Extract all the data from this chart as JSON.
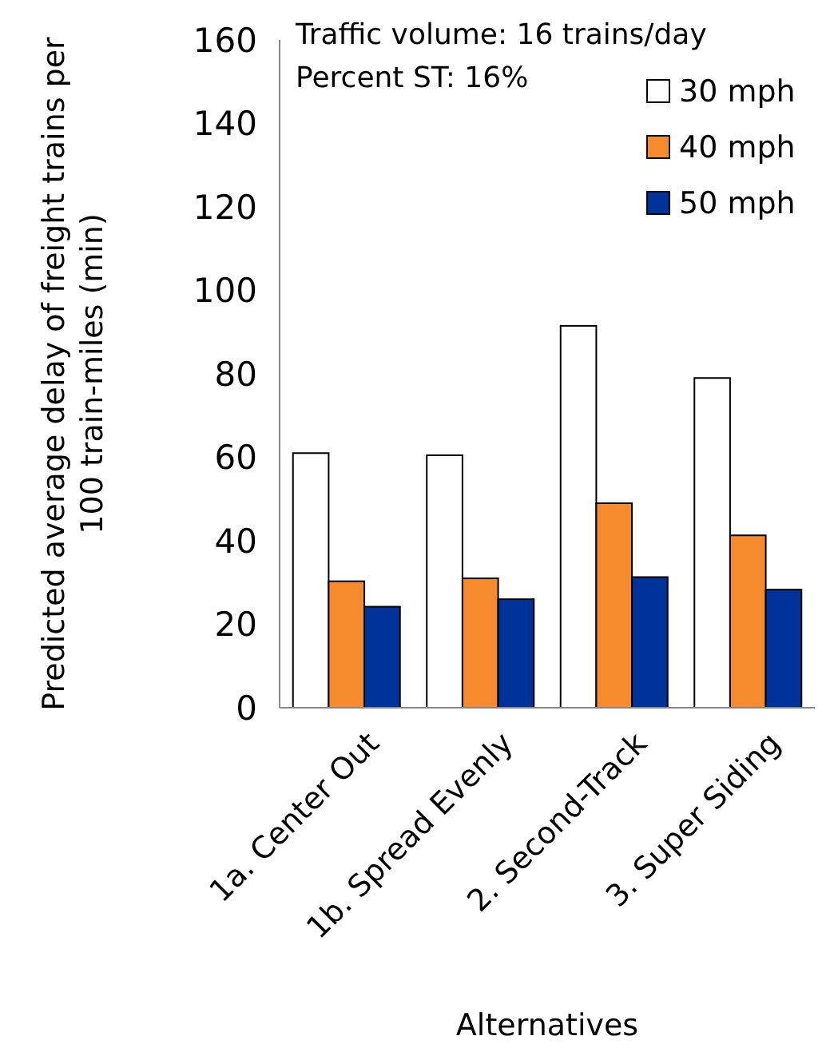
{
  "chart_data": {
    "type": "bar",
    "xlabel": "Alternatives",
    "ylabel": "Predicted average delay of freight trains per 100 train-miles (min)",
    "categories": [
      "1a. Center Out",
      "1b. Spread Evenly",
      "2. Second-Track",
      "3. Super Siding"
    ],
    "series": [
      {
        "name": "30 mph",
        "color": "#ffffff",
        "values": [
          61,
          60.5,
          91.5,
          79
        ]
      },
      {
        "name": "40 mph",
        "color": "#f58a2f",
        "values": [
          30.3,
          31,
          49,
          41.3
        ]
      },
      {
        "name": "50 mph",
        "color": "#003399",
        "values": [
          24.2,
          26,
          31.3,
          28.3
        ]
      }
    ],
    "ylim": [
      0,
      160
    ],
    "yticks": [
      0,
      20,
      40,
      60,
      80,
      100,
      120,
      140,
      160
    ],
    "grid": false,
    "legend": "top right",
    "annotations": [
      "Traffic volume: 16 trains/day",
      "Percent ST: 16%"
    ]
  }
}
